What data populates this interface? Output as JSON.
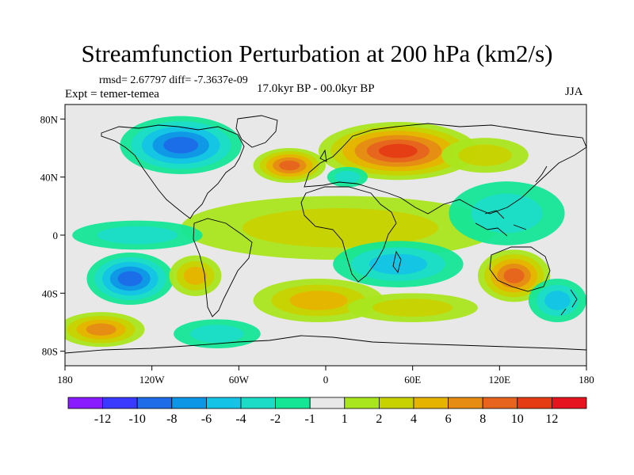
{
  "title": "Streamfunction Perturbation at 200 hPa (km2/s)",
  "stats_line": "rmsd= 2.67797 diff= -7.3637e-09",
  "experiment_label": "Expt = temer-temea",
  "period_label": "17.0kyr BP - 00.0kyr BP",
  "season_label": "JJA",
  "map": {
    "lat_ticks": [
      "80N",
      "40N",
      "0",
      "40S",
      "80S"
    ],
    "lon_ticks": [
      "180",
      "120W",
      "60W",
      "0",
      "60E",
      "120E",
      "180"
    ],
    "background_color": "#e8e8e8",
    "contour_features": [
      {
        "name": "north-america-low",
        "lon": -100,
        "lat": 62,
        "rx": 42,
        "ry": 20,
        "value": -9
      },
      {
        "name": "europe-high",
        "lon": 50,
        "lat": 58,
        "rx": 55,
        "ry": 20,
        "value": 10
      },
      {
        "name": "north-atlantic-high",
        "lon": -25,
        "lat": 48,
        "rx": 25,
        "ry": 12,
        "value": 9
      },
      {
        "name": "mediterranean-low",
        "lon": 15,
        "lat": 40,
        "rx": 14,
        "ry": 7,
        "value": -3
      },
      {
        "name": "east-asia-high",
        "lon": 110,
        "lat": 55,
        "rx": 30,
        "ry": 12,
        "value": 2
      },
      {
        "name": "tropical-band-high",
        "lon": 10,
        "lat": 5,
        "rx": 110,
        "ry": 22,
        "value": 3
      },
      {
        "name": "west-pacific-low",
        "lon": 125,
        "lat": 15,
        "rx": 40,
        "ry": 22,
        "value": -3
      },
      {
        "name": "north-pacific-low",
        "lon": -130,
        "lat": 0,
        "rx": 45,
        "ry": 10,
        "value": -2
      },
      {
        "name": "south-pacific-low",
        "lon": -135,
        "lat": -30,
        "rx": 30,
        "ry": 18,
        "value": -8
      },
      {
        "name": "south-pacific-high",
        "lon": -90,
        "lat": -28,
        "rx": 18,
        "ry": 14,
        "value": 5
      },
      {
        "name": "south-atlantic-high",
        "lon": -5,
        "lat": -45,
        "rx": 45,
        "ry": 15,
        "value": 4
      },
      {
        "name": "indian-ocean-low",
        "lon": 50,
        "lat": -20,
        "rx": 45,
        "ry": 16,
        "value": -4
      },
      {
        "name": "australia-high",
        "lon": 130,
        "lat": -28,
        "rx": 25,
        "ry": 18,
        "value": 8
      },
      {
        "name": "south-indian-high",
        "lon": 60,
        "lat": -50,
        "rx": 45,
        "ry": 10,
        "value": 3
      },
      {
        "name": "southern-ocean-low",
        "lon": 160,
        "lat": -45,
        "rx": 20,
        "ry": 15,
        "value": -4
      },
      {
        "name": "far-south-pacific-high",
        "lon": -155,
        "lat": -65,
        "rx": 30,
        "ry": 12,
        "value": 6
      },
      {
        "name": "south-atlantic-low",
        "lon": -75,
        "lat": -68,
        "rx": 30,
        "ry": 10,
        "value": -3
      }
    ]
  },
  "colorbar": {
    "labels": [
      "-12",
      "-10",
      "-8",
      "-6",
      "-4",
      "-2",
      "-1",
      "1",
      "2",
      "4",
      "6",
      "8",
      "10",
      "12"
    ],
    "colors": [
      "#8a1aff",
      "#3a3aff",
      "#1e6ce8",
      "#0e96e6",
      "#14c3e6",
      "#1cdcc8",
      "#14e696",
      "#e8e8e8",
      "#aae61e",
      "#c8d200",
      "#e6b400",
      "#e68c14",
      "#e6641e",
      "#e63c14",
      "#e6141e"
    ]
  }
}
